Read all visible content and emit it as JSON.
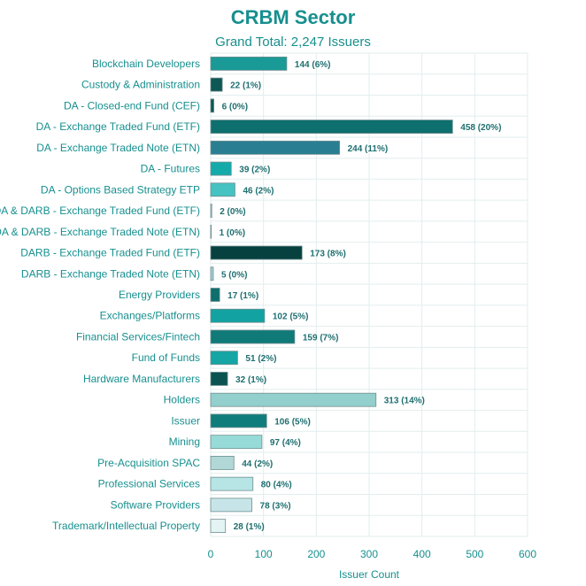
{
  "chart_data": {
    "type": "bar",
    "orientation": "horizontal",
    "title": "CRBM Sector",
    "subtitle": "Grand Total: 2,247 Issuers",
    "xlabel": "Issuer Count",
    "ylabel": "",
    "xlim": [
      0,
      600
    ],
    "xticks": [
      0,
      100,
      200,
      300,
      400,
      500,
      600
    ],
    "grid": true,
    "legend": "none",
    "categories": [
      "Blockchain Developers",
      "Custody & Administration",
      "DA - Closed-end Fund (CEF)",
      "DA - Exchange Traded Fund (ETF)",
      "DA - Exchange Traded Note (ETN)",
      "DA - Futures",
      "DA - Options Based Strategy ETP",
      "DA & DARB - Exchange Traded Fund (ETF)",
      "DA & DARB - Exchange Traded Note (ETN)",
      "DARB - Exchange Traded Fund (ETF)",
      "DARB - Exchange Traded Note (ETN)",
      "Energy Providers",
      "Exchanges/Platforms",
      "Financial Services/Fintech",
      "Fund of Funds",
      "Hardware Manufacturers",
      "Holders",
      "Issuer",
      "Mining",
      "Pre-Acquisition SPAC",
      "Professional Services",
      "Software Providers",
      "Trademark/Intellectual Property"
    ],
    "values": [
      144,
      22,
      6,
      458,
      244,
      39,
      46,
      2,
      1,
      173,
      5,
      17,
      102,
      159,
      51,
      32,
      313,
      106,
      97,
      44,
      80,
      78,
      28
    ],
    "data_labels": [
      "144 (6%)",
      "22 (1%)",
      "6 (0%)",
      "458 (20%)",
      "244 (11%)",
      "39 (2%)",
      "46 (2%)",
      "2 (0%)",
      "1 (0%)",
      "173 (8%)",
      "5 (0%)",
      "17 (1%)",
      "102 (5%)",
      "159 (7%)",
      "51 (2%)",
      "32 (1%)",
      "313 (14%)",
      "106 (5%)",
      "97 (4%)",
      "44 (2%)",
      "80 (4%)",
      "78 (3%)",
      "28 (1%)"
    ],
    "colors": [
      "#1a9a96",
      "#0d5754",
      "#0d5754",
      "#0e706e",
      "#2a7e92",
      "#14aaaa",
      "#45c2c2",
      "#9fd6d8",
      "#b9e3e3",
      "#06403f",
      "#a3cfd7",
      "#0e6f6d",
      "#13a2a2",
      "#0f7a78",
      "#15a5a5",
      "#0a5350",
      "#93cfcc",
      "#0f7d7b",
      "#97dbd8",
      "#b1d7d6",
      "#b7e4e4",
      "#c7e5e9",
      "#e4f4f4"
    ]
  }
}
